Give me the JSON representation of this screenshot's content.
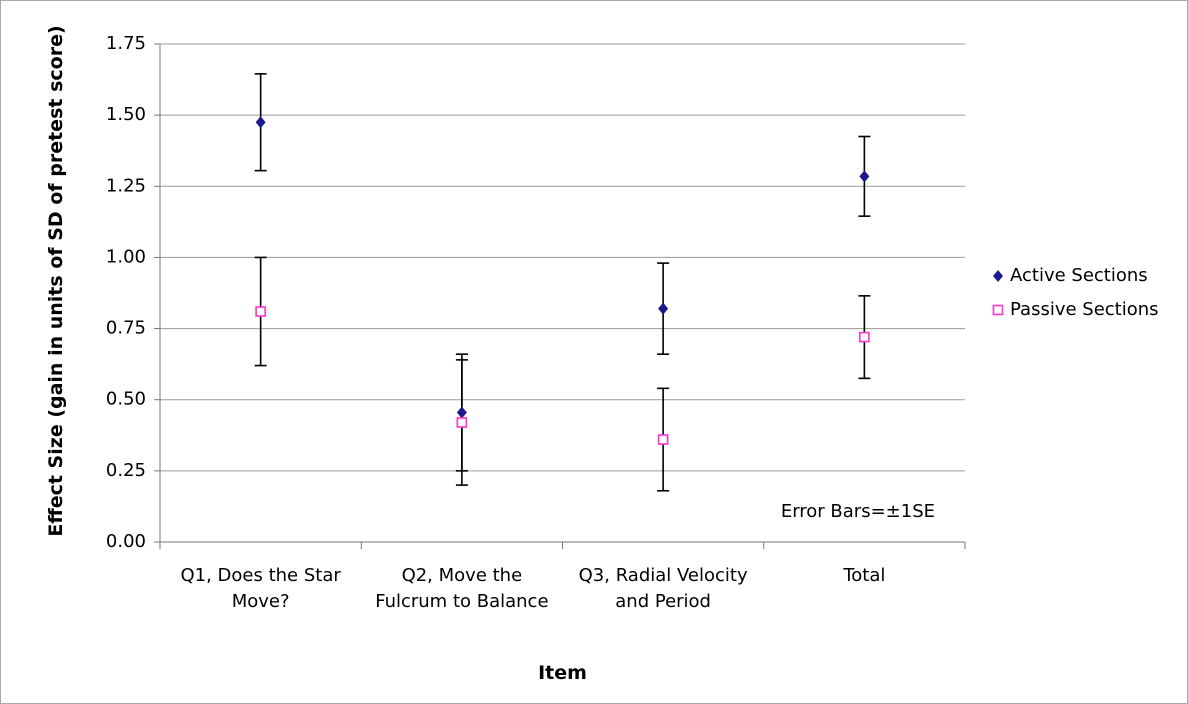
{
  "chart_data": {
    "type": "errorbar",
    "xlabel": "Item",
    "ylabel": "Effect Size (gain in units of SD of pretest score)",
    "annotation": "Error Bars=±1SE",
    "categories": [
      "Q1, Does the Star Move?",
      "Q2, Move the Fulcrum to Balance",
      "Q3, Radial Velocity and Period",
      "Total"
    ],
    "series": [
      {
        "name": "Active Sections",
        "color": "#1a1a8c",
        "marker": "diamond",
        "values": [
          1.475,
          0.455,
          0.82,
          1.285
        ],
        "errors": [
          0.17,
          0.205,
          0.16,
          0.14
        ]
      },
      {
        "name": "Passive Sections",
        "color": "#ff33cc",
        "marker": "square",
        "values": [
          0.81,
          0.42,
          0.36,
          0.72
        ],
        "errors": [
          0.19,
          0.22,
          0.18,
          0.145
        ]
      }
    ],
    "ylim": [
      0,
      1.75
    ],
    "yticks": [
      {
        "value": 0,
        "label": "0.00"
      },
      {
        "value": 0.25,
        "label": "0.25"
      },
      {
        "value": 0.5,
        "label": "0.50"
      },
      {
        "value": 0.75,
        "label": "0.75"
      },
      {
        "value": 1,
        "label": "1.00"
      },
      {
        "value": 1.25,
        "label": "1.25"
      },
      {
        "value": 1.5,
        "label": "1.50"
      },
      {
        "value": 1.75,
        "label": "1.75"
      }
    ],
    "grid": true,
    "legend": "right"
  }
}
